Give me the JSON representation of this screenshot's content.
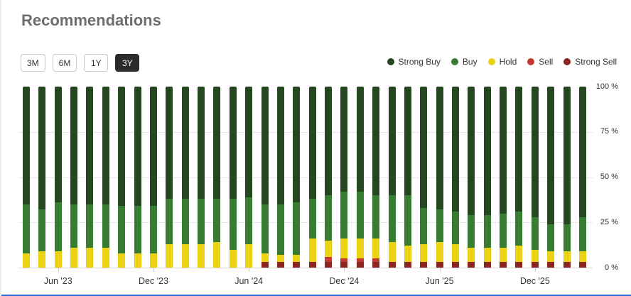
{
  "header": {
    "title": "Recommendations"
  },
  "toolbar": {
    "ranges": [
      {
        "label": "3M",
        "selected": false
      },
      {
        "label": "6M",
        "selected": false
      },
      {
        "label": "1Y",
        "selected": false
      },
      {
        "label": "3Y",
        "selected": true
      }
    ]
  },
  "legend": [
    {
      "label": "Strong Buy",
      "color": "#254720"
    },
    {
      "label": "Buy",
      "color": "#377d31"
    },
    {
      "label": "Hold",
      "color": "#ecd213"
    },
    {
      "label": "Sell",
      "color": "#c23a33"
    },
    {
      "label": "Strong Sell",
      "color": "#8c2420"
    }
  ],
  "colors": {
    "selected_button_bg": "#2b2b2b",
    "grid": "#e6e6e6",
    "axis": "#d6d6d6",
    "title_text": "#6e6e6e",
    "label_text": "#333333",
    "bottom_edge": "#2d68d8"
  },
  "chart_data": {
    "type": "bar",
    "stacked": true,
    "stacking": "percent",
    "title": "Recommendations",
    "xlabel": "",
    "ylabel": "",
    "ylim": [
      0,
      100
    ],
    "grid": true,
    "legend_position": "top-right",
    "categories": [
      "Apr '23",
      "May '23",
      "Jun '23",
      "Jul '23",
      "Aug '23",
      "Sep '23",
      "Oct '23",
      "Nov '23",
      "Dec '23",
      "Jan '24",
      "Feb '24",
      "Mar '24",
      "Apr '24",
      "May '24",
      "Jun '24",
      "Jul '24",
      "Aug '24",
      "Sep '24",
      "Oct '24",
      "Nov '24",
      "Dec '24",
      "Jan '25",
      "Feb '25",
      "Mar '25",
      "Apr '25",
      "May '25",
      "Jun '25",
      "Jul '25",
      "Aug '25",
      "Sep '25",
      "Oct '25",
      "Nov '25",
      "Dec '25",
      "Jan '26",
      "Feb '26",
      "Mar '26"
    ],
    "series": [
      {
        "name": "Strong Buy",
        "color": "#254720",
        "values": [
          65,
          68,
          64,
          65,
          65,
          65,
          66,
          66,
          66,
          62,
          62,
          62,
          62,
          62,
          61,
          65,
          65,
          64,
          62,
          60,
          58,
          58,
          60,
          60,
          60,
          67,
          68,
          69,
          71,
          71,
          70,
          69,
          72,
          76,
          76,
          72
        ]
      },
      {
        "name": "Buy",
        "color": "#377d31",
        "values": [
          27,
          23,
          27,
          24,
          24,
          24,
          26,
          26,
          26,
          25,
          25,
          25,
          24,
          28,
          26,
          27,
          28,
          29,
          22,
          25,
          26,
          26,
          24,
          26,
          28,
          20,
          18,
          18,
          18,
          18,
          19,
          19,
          18,
          15,
          15,
          19
        ]
      },
      {
        "name": "Hold",
        "color": "#ecd213",
        "values": [
          8,
          9,
          9,
          11,
          11,
          11,
          8,
          8,
          8,
          13,
          13,
          13,
          14,
          10,
          13,
          5,
          4,
          4,
          13,
          9,
          11,
          11,
          11,
          11,
          9,
          10,
          11,
          10,
          8,
          8,
          8,
          9,
          7,
          6,
          6,
          6
        ]
      },
      {
        "name": "Sell",
        "color": "#c23a33",
        "values": [
          0,
          0,
          0,
          0,
          0,
          0,
          0,
          0,
          0,
          0,
          0,
          0,
          0,
          0,
          0,
          0,
          0,
          0,
          0,
          3,
          2,
          2,
          2,
          0,
          0,
          0,
          0,
          0,
          0,
          0,
          0,
          0,
          0,
          0,
          0,
          0
        ]
      },
      {
        "name": "Strong Sell",
        "color": "#8c2420",
        "values": [
          0,
          0,
          0,
          0,
          0,
          0,
          0,
          0,
          0,
          0,
          0,
          0,
          0,
          0,
          0,
          3,
          3,
          3,
          3,
          3,
          3,
          3,
          3,
          3,
          3,
          3,
          3,
          3,
          3,
          3,
          3,
          3,
          3,
          3,
          3,
          3
        ]
      }
    ],
    "x_tick_labels": [
      "Jun '23",
      "Dec '23",
      "Jun '24",
      "Dec '24",
      "Jun '25",
      "Dec '25"
    ],
    "x_tick_indices": [
      2,
      8,
      14,
      20,
      26,
      32
    ],
    "y_ticks": [
      {
        "label": "100 %",
        "value": 100
      },
      {
        "label": "75 %",
        "value": 75
      },
      {
        "label": "50 %",
        "value": 50
      },
      {
        "label": "25 %",
        "value": 25
      },
      {
        "label": "0 %",
        "value": 0
      }
    ]
  }
}
